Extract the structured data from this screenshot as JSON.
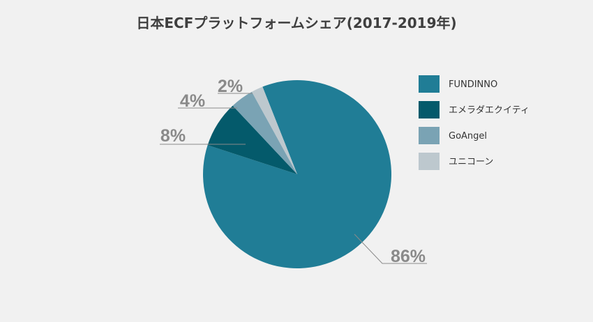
{
  "chart_data": {
    "type": "pie",
    "title": "日本ECFプラットフォームシェア(2017-2019年)",
    "series": [
      {
        "name": "FUNDINNO",
        "value": 86,
        "label": "86%",
        "color": "#207d96"
      },
      {
        "name": "エメラダエクイティ",
        "value": 8,
        "label": "8%",
        "color": "#045a6b"
      },
      {
        "name": "GoAngel",
        "value": 4,
        "label": "4%",
        "color": "#7aa3b4"
      },
      {
        "name": "ユニコーン",
        "value": 2,
        "label": "2%",
        "color": "#bdc8ce"
      }
    ],
    "legend_position": "right"
  }
}
